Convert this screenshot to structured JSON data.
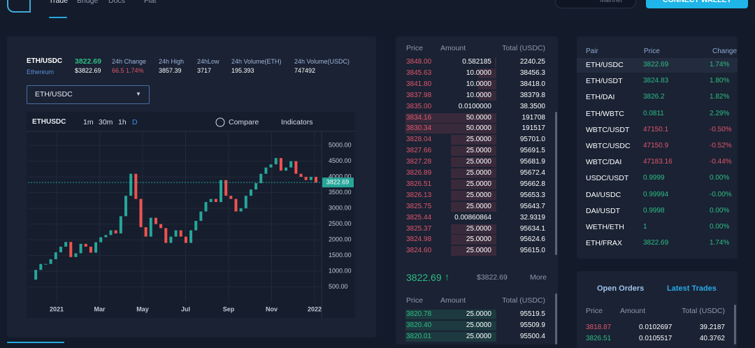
{
  "nav": {
    "links": [
      "Trade",
      "Bridge",
      "Docs",
      "Fiat"
    ],
    "network": "Mainnet",
    "connect": "CONNECT WALLET"
  },
  "ticker": {
    "pair": "ETH/USDC",
    "name": "Ethereum",
    "price": "3822.69",
    "price_usd": "$3822.69",
    "stats": [
      {
        "label": "24h Change",
        "value": "66.5 1.74%"
      },
      {
        "label": "24h High",
        "value": "3857.39"
      },
      {
        "label": "24hLow",
        "value": "3717"
      },
      {
        "label": "24h Volume(ETH)",
        "value": "195.393"
      },
      {
        "label": "24h Volume(USDC)",
        "value": "747492"
      }
    ]
  },
  "select": "ETH/USDC",
  "toolbar": {
    "symbol": "ETHUSDC",
    "intervals": [
      "1m",
      "30m",
      "1h",
      "D"
    ],
    "compare": "Compare",
    "indicators": "Indicators"
  },
  "chart": {
    "type": "candlestick",
    "closes": [
      730,
      1040,
      1230,
      1230,
      1380,
      1600,
      1780,
      1930,
      1450,
      1570,
      1870,
      1780,
      1590,
      1920,
      2080,
      2150,
      2300,
      2200,
      2750,
      3400,
      4100,
      3300,
      2400,
      2100,
      2700,
      2500,
      2370,
      1900,
      2100,
      2300,
      2100,
      1900,
      2300,
      2600,
      2900,
      3200,
      3300,
      3200,
      3900,
      3400,
      3300,
      2900,
      3000,
      3400,
      3600,
      3800,
      4100,
      4300,
      4400,
      4600,
      4200,
      4300,
      4500,
      4100,
      4000,
      3900,
      4000,
      3822.69
    ],
    "up_color": "#26a69a",
    "down_color": "#ef5350",
    "ylim": [
      0,
      5450
    ],
    "yticks": [
      {
        "value": 500,
        "label": "500.00"
      },
      {
        "value": 1000,
        "label": "1000.00"
      },
      {
        "value": 1500,
        "label": "1500.00"
      },
      {
        "value": 2000,
        "label": "2000.00"
      },
      {
        "value": 2500,
        "label": "2500.00"
      },
      {
        "value": 3000,
        "label": "3000.00"
      },
      {
        "value": 3500,
        "label": "3500.00"
      },
      {
        "value": 4000,
        "label": "4000.00"
      },
      {
        "value": 4500,
        "label": "4500.00"
      },
      {
        "value": 5000,
        "label": "5000.00"
      }
    ],
    "xlabels": [
      "2021",
      "Mar",
      "May",
      "Jul",
      "Sep",
      "Nov",
      "2022"
    ],
    "grid": true
  },
  "asks": {
    "header": [
      "Price",
      "Amount",
      "Total (USDC)"
    ],
    "rows": [
      [
        "3848.00",
        "0.582185",
        "2240.25"
      ],
      [
        "3845.63",
        "10.0000",
        "38456.3"
      ],
      [
        "3841.80",
        "10.0000",
        "38418.0"
      ],
      [
        "3837.98",
        "10.0000",
        "38379.8"
      ],
      [
        "3835.00",
        "0.0100000",
        "38.3500"
      ],
      [
        "3834.16",
        "50.0000",
        "191708"
      ],
      [
        "3830.34",
        "50.0000",
        "191517"
      ],
      [
        "3828.04",
        "25.0000",
        "95701.0"
      ],
      [
        "3827.66",
        "25.0000",
        "95691.5"
      ],
      [
        "3827.28",
        "25.0000",
        "95681.9"
      ],
      [
        "3826.89",
        "25.0000",
        "95672.4"
      ],
      [
        "3826.51",
        "25.0000",
        "95662.8"
      ],
      [
        "3826.13",
        "25.0000",
        "95653.3"
      ],
      [
        "3825.75",
        "25.0000",
        "95643.7"
      ],
      [
        "3825.44",
        "0.00860864",
        "32.9319"
      ],
      [
        "3825.37",
        "25.0000",
        "95634.1"
      ],
      [
        "3824.98",
        "25.0000",
        "95624.6"
      ],
      [
        "3824.60",
        "25.0000",
        "95615.0"
      ]
    ]
  },
  "mid": {
    "price": "3822.69",
    "usd": "$3822.69",
    "more": "More"
  },
  "bids": {
    "header": [
      "Price",
      "Amount",
      "Total (USDC)"
    ],
    "rows": [
      [
        "3820.78",
        "25.0000",
        "95519.5"
      ],
      [
        "3820.40",
        "25.0000",
        "95509.9"
      ],
      [
        "3820.01",
        "25.0000",
        "95500.4"
      ]
    ]
  },
  "pairs": {
    "header": [
      "Pair",
      "Price",
      "Change"
    ],
    "rows": [
      [
        "ETH/USDC",
        "3822.69",
        "1.74%"
      ],
      [
        "ETH/USDT",
        "3824.83",
        "1.80%"
      ],
      [
        "ETH/DAI",
        "3826.2",
        "1.82%"
      ],
      [
        "ETH/WBTC",
        "0.0811",
        "2.29%"
      ],
      [
        "WBTC/USDT",
        "47150.1",
        "-0.50%"
      ],
      [
        "WBTC/USDC",
        "47150.9",
        "-0.52%"
      ],
      [
        "WBTC/DAI",
        "47183.16",
        "-0.44%"
      ],
      [
        "USDC/USDT",
        "0.9999",
        "0.00%"
      ],
      [
        "DAI/USDC",
        "0.99994",
        "-0.00%"
      ],
      [
        "DAI/USDT",
        "0.9998",
        "0.00%"
      ],
      [
        "WETH/ETH",
        "1",
        "0.00%"
      ],
      [
        "ETH/FRAX",
        "3822.69",
        "1.74%"
      ]
    ]
  },
  "orders": {
    "tabs": [
      "Open Orders",
      "Latest Trades"
    ],
    "header": [
      "Price",
      "Amount",
      "Total (USDC)"
    ],
    "rows": [
      {
        "cells": [
          "3818.87",
          "0.0102697",
          "39.2187"
        ],
        "color": "#e0566b"
      },
      {
        "cells": [
          "3826.51",
          "0.0105517",
          "40.3762"
        ],
        "color": "#2ebd85"
      }
    ]
  }
}
